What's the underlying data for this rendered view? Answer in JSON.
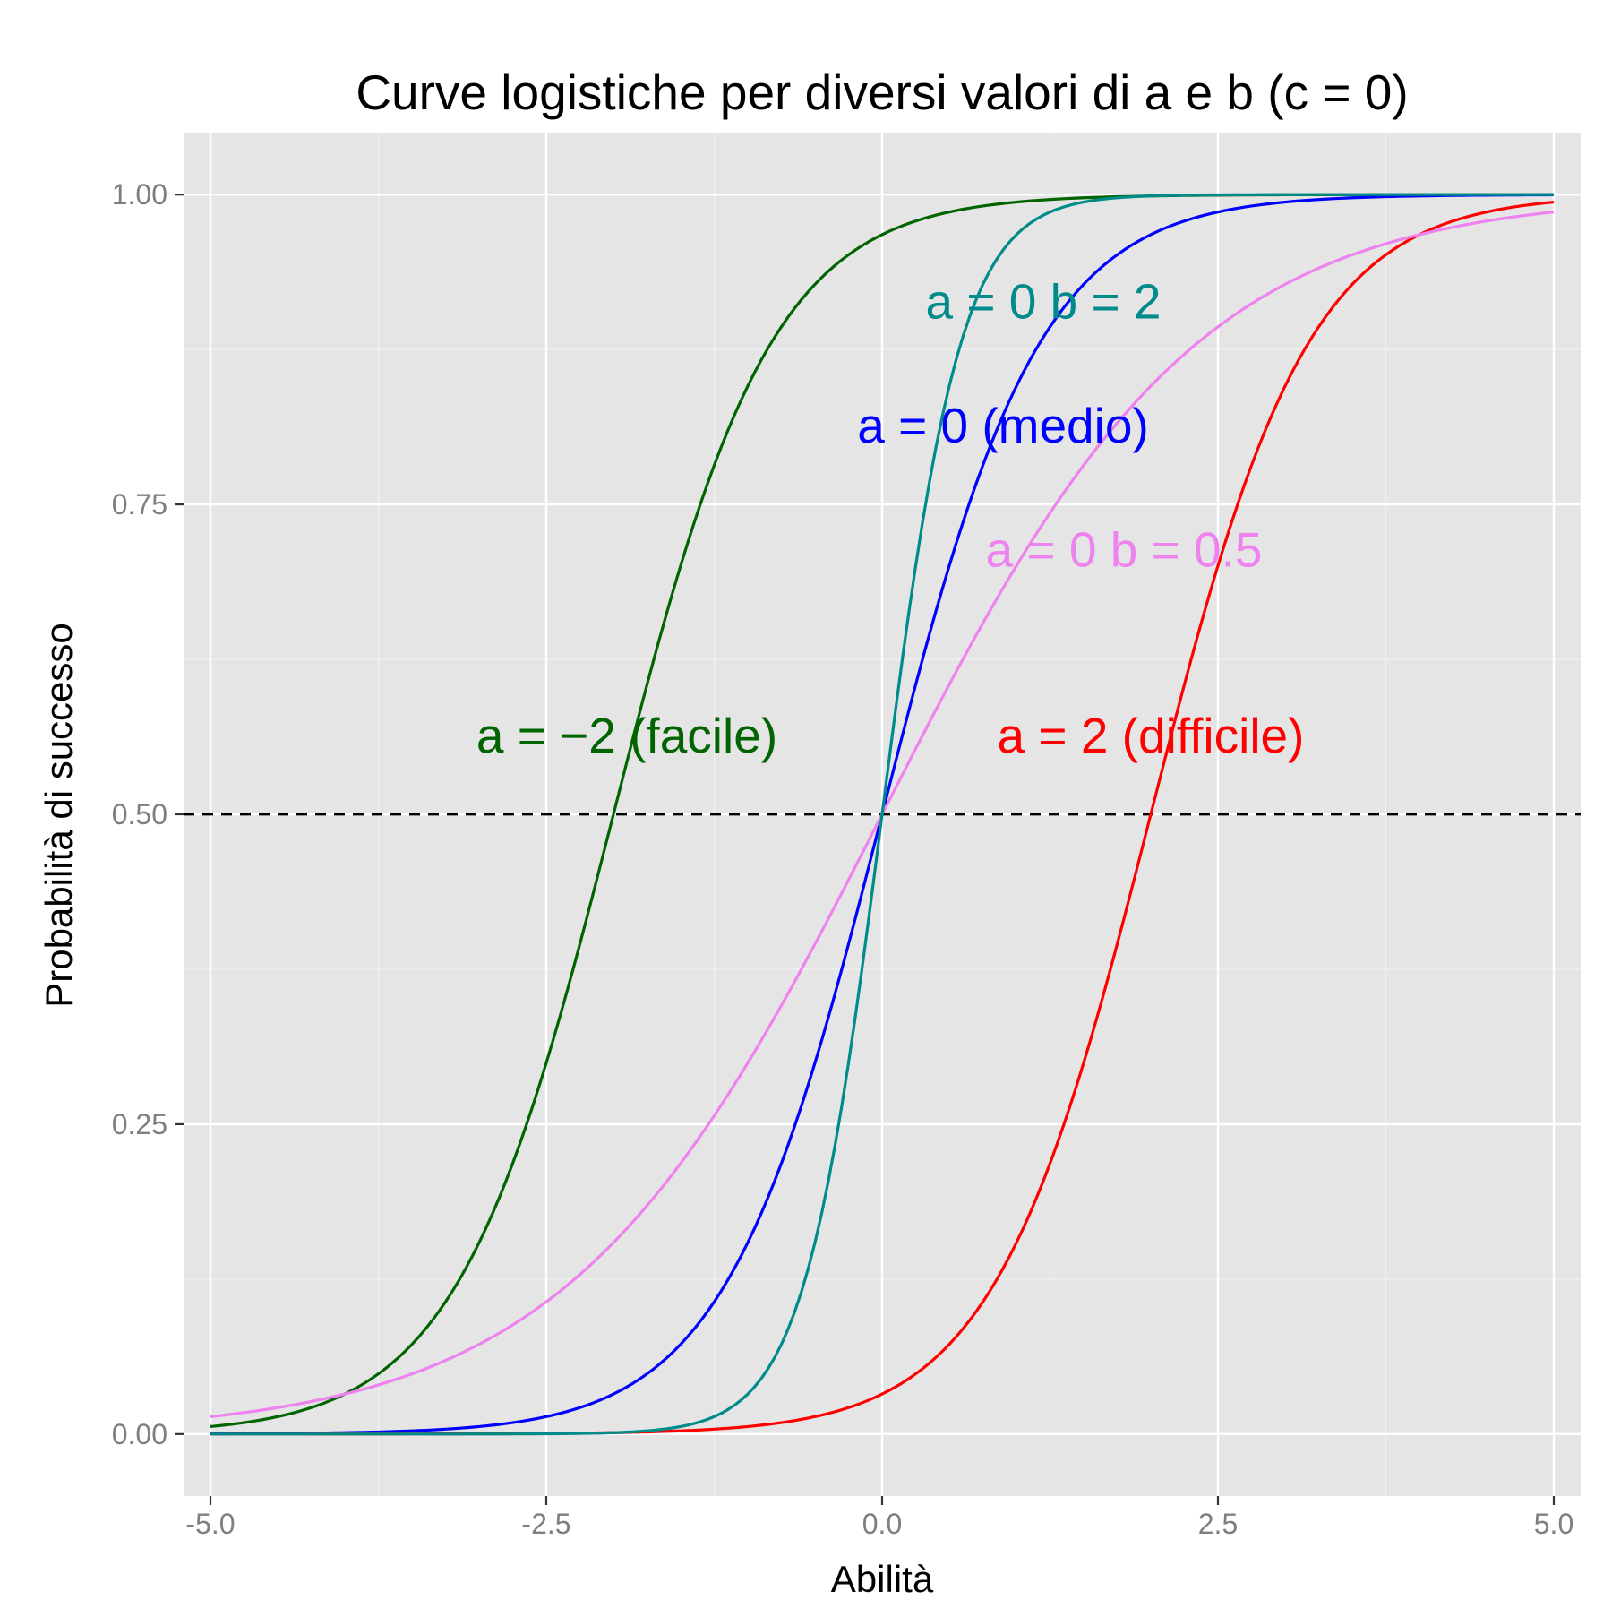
{
  "chart_data": {
    "type": "line",
    "title": "Curve logistiche per diversi valori di a e b (c = 0)",
    "xlabel": "Abilità",
    "ylabel": "Probabilità di successo",
    "xlim": [
      -5.2,
      5.2
    ],
    "ylim": [
      -0.05,
      1.05
    ],
    "x_ticks": [
      -5.0,
      -2.5,
      0.0,
      2.5,
      5.0
    ],
    "x_tick_labels": [
      "-5.0",
      "-2.5",
      "0.0",
      "2.5",
      "5.0"
    ],
    "y_ticks": [
      0.0,
      0.25,
      0.5,
      0.75,
      1.0
    ],
    "y_tick_labels": [
      "0.00",
      "0.25",
      "0.50",
      "0.75",
      "1.00"
    ],
    "grid": true,
    "background": "#e5e5e5",
    "reference_line": {
      "y": 0.5,
      "style": "dashed",
      "color": "#000000"
    },
    "series": [
      {
        "color": "#006400",
        "model": "logistic",
        "a": -2,
        "b": 1,
        "c": 0,
        "x": [
          -5,
          5
        ]
      },
      {
        "color": "#0000ff",
        "model": "logistic",
        "a": 0,
        "b": 1,
        "c": 0,
        "x": [
          -5,
          5
        ]
      },
      {
        "color": "#ff0000",
        "model": "logistic",
        "a": 2,
        "b": 1,
        "c": 0,
        "x": [
          -5,
          5
        ]
      },
      {
        "color": "#ee82ee",
        "model": "logistic",
        "a": 0,
        "b": 0.5,
        "c": 0,
        "x": [
          -5,
          5
        ]
      },
      {
        "color": "#008b8b",
        "model": "logistic",
        "a": 0,
        "b": 2,
        "c": 0,
        "x": [
          -5,
          5
        ]
      }
    ],
    "annotations": [
      {
        "text": "a = −2 (facile)",
        "x": -1.9,
        "y": 0.55,
        "color": "#006400"
      },
      {
        "text": "a = 0 (medio)",
        "x": 0.9,
        "y": 0.8,
        "color": "#0000ff"
      },
      {
        "text": "a = 2 (difficile)",
        "x": 2.0,
        "y": 0.55,
        "color": "#ff0000"
      },
      {
        "text": "a = 0 b = 0.5",
        "x": 1.8,
        "y": 0.7,
        "color": "#ee82ee"
      },
      {
        "text": "a = 0 b = 2",
        "x": 1.2,
        "y": 0.9,
        "color": "#008b8b"
      }
    ]
  }
}
